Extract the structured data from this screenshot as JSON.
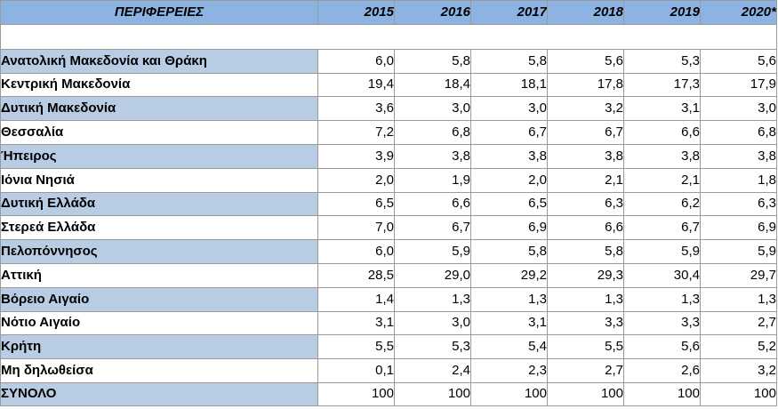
{
  "header": {
    "region_label": "ΠΕΡΙΦΕΡΕΙΕΣ",
    "years": [
      "2015",
      "2016",
      "2017",
      "2018",
      "2019",
      "2020*"
    ]
  },
  "rows": [
    {
      "region": "Ανατολική Μακεδονία και Θράκη",
      "values": [
        "6,0",
        "5,8",
        "5,8",
        "5,6",
        "5,3",
        "5,6"
      ]
    },
    {
      "region": "Κεντρική Μακεδονία",
      "values": [
        "19,4",
        "18,4",
        "18,1",
        "17,8",
        "17,3",
        "17,9"
      ]
    },
    {
      "region": "Δυτική Μακεδονία",
      "values": [
        "3,6",
        "3,0",
        "3,0",
        "3,2",
        "3,1",
        "3,0"
      ]
    },
    {
      "region": "Θεσσαλία",
      "values": [
        "7,2",
        "6,8",
        "6,7",
        "6,7",
        "6,6",
        "6,8"
      ]
    },
    {
      "region": "Ήπειρος",
      "values": [
        "3,9",
        "3,8",
        "3,8",
        "3,8",
        "3,8",
        "3,8"
      ]
    },
    {
      "region": "Ιόνια Νησιά",
      "values": [
        "2,0",
        "1,9",
        "2,0",
        "2,1",
        "2,1",
        "1,8"
      ]
    },
    {
      "region": "Δυτική Ελλάδα",
      "values": [
        "6,5",
        "6,6",
        "6,5",
        "6,3",
        "6,2",
        "6,3"
      ]
    },
    {
      "region": "Στερεά Ελλάδα",
      "values": [
        "7,0",
        "6,7",
        "6,9",
        "6,6",
        "6,7",
        "6,9"
      ]
    },
    {
      "region": "Πελοπόννησος",
      "values": [
        "6,0",
        "5,9",
        "5,8",
        "5,8",
        "5,9",
        "5,9"
      ]
    },
    {
      "region": "Αττική",
      "values": [
        "28,5",
        "29,0",
        "29,2",
        "29,3",
        "30,4",
        "29,7"
      ]
    },
    {
      "region": "Βόρειο Αιγαίο",
      "values": [
        "1,4",
        "1,3",
        "1,3",
        "1,3",
        "1,3",
        "1,3"
      ]
    },
    {
      "region": "Νότιο Αιγαίο",
      "values": [
        "3,1",
        "3,0",
        "3,1",
        "3,3",
        "3,3",
        "2,7"
      ]
    },
    {
      "region": "Κρήτη",
      "values": [
        "5,5",
        "5,3",
        "5,4",
        "5,5",
        "5,6",
        "5,2"
      ]
    },
    {
      "region": "Μη δηλωθείσα",
      "values": [
        "0,1",
        "2,4",
        "2,3",
        "2,7",
        "2,6",
        "3,2"
      ]
    },
    {
      "region": "ΣΥΝΟΛΟ",
      "values": [
        "100",
        "100",
        "100",
        "100",
        "100",
        "100"
      ]
    }
  ],
  "colors": {
    "header_bg": "#8db3e2",
    "region_shade": "#b8cce4",
    "border": "#9a9a9a"
  }
}
